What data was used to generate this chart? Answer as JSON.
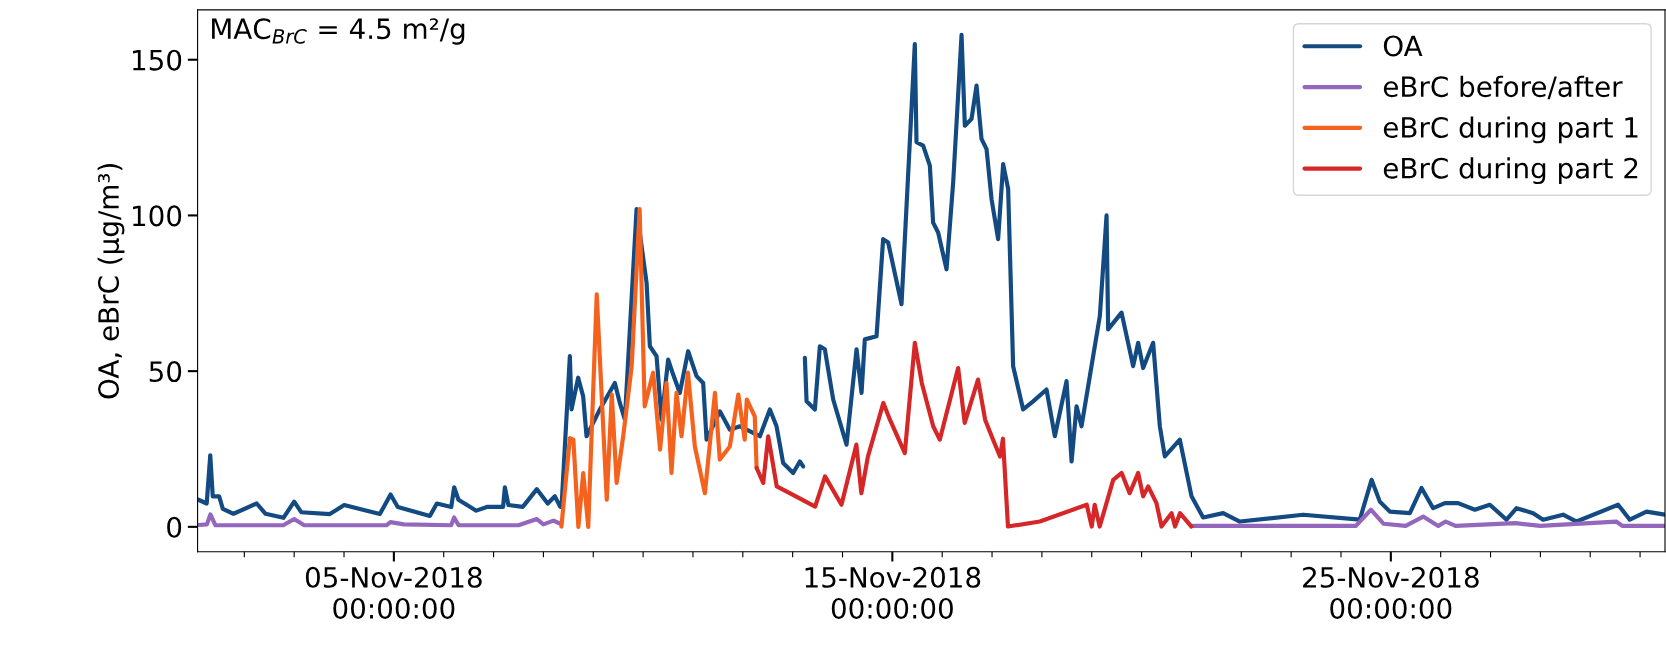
{
  "chart_data": {
    "type": "line",
    "ylabel": "OA, eBrC (µg/m³)",
    "annotations": [
      "MAC$_{BrC}$ = 4.5 m²/g"
    ],
    "legend": "top right",
    "xlim": [
      "2018-11-01T01:30",
      "2018-11-30T12:00"
    ],
    "ylim": [
      -8,
      166
    ],
    "yticks": [
      0,
      50,
      100,
      150
    ],
    "xticks": [
      {
        "value": "2018-11-02",
        "label": null
      },
      {
        "value": "2018-11-03",
        "label": null
      },
      {
        "value": "2018-11-04",
        "label": null
      },
      {
        "value": "2018-11-05",
        "label": "05-Nov-2018\n00:00:00"
      },
      {
        "value": "2018-11-06",
        "label": null
      },
      {
        "value": "2018-11-07",
        "label": null
      },
      {
        "value": "2018-11-08",
        "label": null
      },
      {
        "value": "2018-11-09",
        "label": null
      },
      {
        "value": "2018-11-10",
        "label": null
      },
      {
        "value": "2018-11-11",
        "label": null
      },
      {
        "value": "2018-11-12",
        "label": null
      },
      {
        "value": "2018-11-13",
        "label": null
      },
      {
        "value": "2018-11-14",
        "label": null
      },
      {
        "value": "2018-11-15",
        "label": "15-Nov-2018\n00:00:00"
      },
      {
        "value": "2018-11-16",
        "label": null
      },
      {
        "value": "2018-11-17",
        "label": null
      },
      {
        "value": "2018-11-18",
        "label": null
      },
      {
        "value": "2018-11-19",
        "label": null
      },
      {
        "value": "2018-11-20",
        "label": null
      },
      {
        "value": "2018-11-21",
        "label": null
      },
      {
        "value": "2018-11-22",
        "label": null
      },
      {
        "value": "2018-11-23",
        "label": null
      },
      {
        "value": "2018-11-24",
        "label": null
      },
      {
        "value": "2018-11-25",
        "label": "25-Nov-2018\n00:00:00"
      },
      {
        "value": "2018-11-26",
        "label": null
      },
      {
        "value": "2018-11-27",
        "label": null
      },
      {
        "value": "2018-11-28",
        "label": null
      },
      {
        "value": "2018-11-29",
        "label": null
      },
      {
        "value": "2018-11-30",
        "label": null
      }
    ],
    "series": [
      {
        "name": "OA",
        "color": "#134a82",
        "x": [
          "2018-11-01T01:55",
          "2018-11-01T05:53",
          "2018-11-01T07:36",
          "2018-11-01T08:48",
          "2018-11-01T11:53",
          "2018-11-01T13:38",
          "2018-11-01T18:46",
          "2018-11-02T05:57",
          "2018-11-02T10:14",
          "2018-11-02T18:50",
          "2018-11-03T00:00",
          "2018-11-03T03:25",
          "2018-11-03T17:11",
          "2018-11-04T00:05",
          "2018-11-04T17:15",
          "2018-11-04T22:25",
          "2018-11-05T01:52",
          "2018-11-05T17:20",
          "2018-11-05T20:42",
          "2018-11-06T03:38",
          "2018-11-06T05:02",
          "2018-11-06T07:06",
          "2018-11-06T15:40",
          "2018-11-06T20:47",
          "2018-11-07T04:35",
          "2018-11-07T05:27",
          "2018-11-07T07:10",
          "2018-11-07T14:04",
          "2018-11-07T20:51",
          "2018-11-08T02:05",
          "2018-11-08T05:31",
          "2018-11-08T08:07",
          "2018-11-08T08:44",
          "2018-11-08T12:44",
          "2018-11-08T13:33",
          "2018-11-08T16:44",
          "2018-11-08T19:08",
          "2018-11-08T20:46",
          "2018-11-09T03:10",
          "2018-11-09T10:24",
          "2018-11-09T12:48",
          "2018-11-09T15:13",
          "2018-11-09T20:51",
          "2018-11-10T01:40",
          "2018-11-10T03:15",
          "2018-11-10T06:28",
          "2018-11-10T08:53",
          "2018-11-10T12:04",
          "2018-11-10T14:28",
          "2018-11-10T17:41",
          "2018-11-10T21:41",
          "2018-11-11T01:44",
          "2018-11-11T04:55",
          "2018-11-11T06:33",
          "2018-11-11T12:57",
          "2018-11-11T17:46",
          "2018-11-11T22:35",
          "2018-11-12T08:13",
          "2018-11-12T13:02",
          "2018-11-12T16:15",
          "2018-11-12T19:25",
          "2018-11-13T00:14",
          "2018-11-13T03:27",
          "2018-11-13T05:03",
          "2018-11-13T05:30",
          "2018-11-13T05:53",
          "2018-11-13T06:42",
          "2018-11-13T10:42",
          "2018-11-13T13:06",
          "2018-11-13T15:30",
          "2018-11-13T19:31",
          "2018-11-14T01:57",
          "2018-11-14T06:46",
          "2018-11-14T09:10",
          "2018-11-14T10:45",
          "2018-11-14T16:23",
          "2018-11-14T19:34",
          "2018-11-14T21:59",
          "2018-11-15T04:25",
          "2018-11-15T10:49",
          "2018-11-15T11:38",
          "2018-11-15T14:50",
          "2018-11-15T18:03",
          "2018-11-15T19:38",
          "2018-11-15T22:03",
          "2018-11-16T02:05",
          "2018-11-16T05:17",
          "2018-11-16T09:19",
          "2018-11-16T10:54",
          "2018-11-16T14:08",
          "2018-11-16T16:32",
          "2018-11-16T18:56",
          "2018-11-16T21:21",
          "2018-11-16T23:46",
          "2018-11-17T02:56",
          "2018-11-17T05:21",
          "2018-11-17T07:45",
          "2018-11-17T10:09",
          "2018-11-17T14:58",
          "2018-11-17T19:47",
          "2018-11-18T02:14",
          "2018-11-18T06:14",
          "2018-11-18T11:52",
          "2018-11-18T14:17",
          "2018-11-18T16:41",
          "2018-11-18T19:05",
          "2018-11-18T23:05",
          "2018-11-19T03:54",
          "2018-11-19T07:08",
          "2018-11-19T07:54",
          "2018-11-19T14:21",
          "2018-11-19T19:56",
          "2018-11-19T22:21",
          "2018-11-20T00:45",
          "2018-11-20T05:34",
          "2018-11-20T08:47",
          "2018-11-20T11:11",
          "2018-11-20T18:24",
          "2018-11-21T00:03",
          "2018-11-21T05:38",
          "2018-11-21T15:16",
          "2018-11-21T23:18",
          "2018-11-23T05:47",
          "2018-11-24T09:04",
          "2018-11-24T14:43",
          "2018-11-24T18:42",
          "2018-11-24T23:31",
          "2018-11-25T09:09",
          "2018-11-25T14:47",
          "2018-11-25T20:22",
          "2018-11-26T02:01",
          "2018-11-26T08:24",
          "2018-11-26T16:26",
          "2018-11-26T23:40",
          "2018-11-27T07:42",
          "2018-11-27T12:31",
          "2018-11-27T20:31",
          "2018-11-28T01:19",
          "2018-11-28T10:57",
          "2018-11-28T17:24",
          "2018-11-29T13:26",
          "2018-11-29T19:04",
          "2018-11-30T03:06",
          "2018-11-30T11:54"
        ],
        "values": [
          8.7,
          7.5,
          23,
          9.8,
          9.8,
          5.8,
          4.2,
          7.5,
          4.2,
          2.9,
          8.1,
          4.7,
          4.1,
          7.0,
          4.1,
          10.4,
          6.4,
          3.5,
          7.5,
          6.4,
          12.7,
          8.7,
          5.2,
          6.4,
          6.4,
          12.7,
          7.0,
          6.4,
          12.1,
          7.5,
          9.8,
          6.4,
          6.5,
          54.8,
          37.7,
          47.9,
          41.9,
          29.1,
          37.7,
          46.2,
          39.8,
          34.4,
          102,
          78.4,
          58,
          54.8,
          34.4,
          53.7,
          48.9,
          43,
          56.4,
          48.4,
          46.2,
          28,
          37.1,
          31.2,
          32.3,
          29.1,
          37.7,
          32.3,
          20.5,
          17.3,
          21,
          19.4,
          null,
          54.3,
          40.3,
          37.7,
          58,
          57,
          40.9,
          26.4,
          57,
          43,
          60.2,
          61.2,
          92.4,
          91.3,
          71.5,
          155,
          123.5,
          122.4,
          116,
          97.7,
          94.5,
          82.7,
          110.6,
          158,
          128.8,
          131,
          141.7,
          124.6,
          121.3,
          105.2,
          92.4,
          116.5,
          108.5,
          51.6,
          37.7,
          40.3,
          44.1,
          29.1,
          46.8,
          21,
          38.7,
          32.3,
          48.4,
          67.7,
          100,
          63.4,
          68.8,
          51.6,
          59.1,
          51,
          59.1,
          32.3,
          22.6,
          28,
          9.8,
          3,
          4.4,
          1.7,
          3.9,
          2.3,
          15.1,
          8.1,
          4.9,
          4.4,
          12.5,
          6,
          7.6,
          7.6,
          5.5,
          7.1,
          2.3,
          6,
          4.4,
          2.3,
          3.9,
          1.7,
          7.1,
          2.3,
          4.9,
          3.9
        ]
      },
      {
        "name": "eBrC before/after",
        "color": "#9467bd",
        "x": [
          "2018-11-01T01:55",
          "2018-11-01T06:00",
          "2018-11-01T07:40",
          "2018-11-01T10:05",
          "2018-11-02T18:45",
          "2018-11-03T00:00",
          "2018-11-03T04:50",
          "2018-11-04T20:25",
          "2018-11-04T22:20",
          "2018-11-05T04:50",
          "2018-11-06T03:35",
          "2018-11-06T05:00",
          "2018-11-06T07:10",
          "2018-11-07T12:00",
          "2018-11-07T20:50",
          "2018-11-08T00:00",
          "2018-11-08T04:50",
          "2018-11-08T08:10",
          "2018-11-15T00:00",
          "2018-11-21T00:00",
          "2018-11-24T07:10",
          "2018-11-24T14:25",
          "2018-11-24T20:25",
          "2018-11-25T07:10",
          "2018-11-25T15:35",
          "2018-11-25T22:50",
          "2018-11-26T02:25",
          "2018-11-26T07:10",
          "2018-11-27T12:00",
          "2018-11-28T00:00",
          "2018-11-29T12:30",
          "2018-11-29T15:35",
          "2018-11-30T11:45"
        ],
        "values": [
          0.6,
          0.8,
          4,
          0.5,
          0.5,
          2.5,
          0.5,
          0.5,
          1.5,
          0.8,
          0.5,
          3,
          0.5,
          0.5,
          2.5,
          0.8,
          2,
          1,
          null,
          0.3,
          0.3,
          5.5,
          1,
          0.3,
          3.3,
          0.3,
          1.7,
          0.3,
          1.2,
          0.3,
          1.7,
          0.3,
          0.3
        ]
      },
      {
        "name": "eBrC during part 1",
        "color": "#f5621e",
        "x": [
          "2018-11-08T08:40",
          "2018-11-08T12:45",
          "2018-11-08T14:25",
          "2018-11-08T16:50",
          "2018-11-08T19:10",
          "2018-11-08T21:35",
          "2018-11-09T01:40",
          "2018-11-09T06:30",
          "2018-11-09T08:55",
          "2018-11-09T11:15",
          "2018-11-09T14:25",
          "2018-11-09T18:30",
          "2018-11-09T22:20",
          "2018-11-10T00:45",
          "2018-11-10T04:50",
          "2018-11-10T08:10",
          "2018-11-10T11:15",
          "2018-11-10T13:40",
          "2018-11-10T16:05",
          "2018-11-10T18:30",
          "2018-11-10T21:35",
          "2018-11-11T00:55",
          "2018-11-11T05:45",
          "2018-11-11T10:35",
          "2018-11-11T12:55",
          "2018-11-11T17:45",
          "2018-11-11T21:50",
          "2018-11-12T00:55",
          "2018-11-12T01:55",
          "2018-11-12T05:45",
          "2018-11-12T06:40"
        ],
        "values": [
          0.1,
          28.5,
          28,
          0,
          17.3,
          0,
          74.7,
          8.7,
          42.5,
          14.1,
          29.1,
          51.6,
          102,
          38.7,
          49.5,
          24.8,
          46.2,
          17.3,
          43,
          29.1,
          49.5,
          25.8,
          10.8,
          43,
          21.6,
          25.8,
          42.5,
          28,
          40.9,
          35.5,
          18.9
        ]
      },
      {
        "name": "eBrC during part 2",
        "color": "#d62728",
        "x": [
          "2018-11-12T06:40",
          "2018-11-12T09:50",
          "2018-11-12T12:15",
          "2018-11-12T16:20",
          "2018-11-12T22:35",
          "2018-11-13T10:50",
          "2018-11-13T15:35",
          "2018-11-13T23:30",
          "2018-11-14T06:40",
          "2018-11-14T09:05",
          "2018-11-14T12:15",
          "2018-11-14T19:40",
          "2018-11-14T22:50",
          "2018-11-15T06:00",
          "2018-11-15T10:50",
          "2018-11-15T14:10",
          "2018-11-15T19:40",
          "2018-11-15T22:50",
          "2018-11-16T07:40",
          "2018-11-16T10:50",
          "2018-11-16T17:15",
          "2018-11-16T20:40",
          "2018-11-17T00:30",
          "2018-11-17T03:50",
          "2018-11-17T05:15",
          "2018-11-17T07:40",
          "2018-11-17T23:00",
          "2018-11-18T21:35",
          "2018-11-19T00:00",
          "2018-11-19T01:25",
          "2018-11-19T03:50",
          "2018-11-19T10:20",
          "2018-11-19T14:25",
          "2018-11-19T18:15",
          "2018-11-19T22:20",
          "2018-11-20T00:45",
          "2018-11-20T03:10",
          "2018-11-20T07:10",
          "2018-11-20T09:35",
          "2018-11-20T14:25",
          "2018-11-20T16:05",
          "2018-11-20T18:30",
          "2018-11-21T00:00"
        ],
        "values": [
          18.9,
          14.1,
          29.1,
          13,
          10.8,
          6.5,
          16.2,
          7.1,
          26.4,
          10.8,
          22.6,
          39.8,
          34.4,
          23.7,
          59.1,
          46.2,
          32.3,
          28,
          51,
          33.4,
          47.3,
          34.4,
          28,
          22.6,
          28.3,
          0.1,
          1.7,
          7.1,
          0.1,
          7.1,
          0.1,
          15.1,
          17.3,
          10.8,
          17.3,
          9.8,
          13,
          7.6,
          0.1,
          4.4,
          0.1,
          4.4,
          0.1
        ]
      }
    ]
  }
}
